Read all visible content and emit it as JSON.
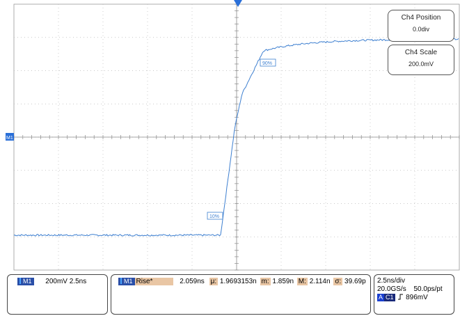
{
  "scope": {
    "channel_marker": "M1",
    "waveform_color": "#3d7fd0",
    "trigger_marker_color": "#2a6fd8",
    "time_per_div_ns": 2.5,
    "volts_per_div_mV": 200,
    "low_level_label": "10%",
    "high_level_label": "90%"
  },
  "ch4_position": {
    "title": "Ch4 Position",
    "value": "0.0div"
  },
  "ch4_scale": {
    "title": "Ch4 Scale",
    "value": "200.0mV"
  },
  "left_panel": {
    "channel": "M1",
    "text": "200mV 2.5ns"
  },
  "measure_panel": {
    "channel": "M1",
    "label": "Rise*",
    "value": "2.059ns",
    "mean_label": "μ:",
    "mean_value": "1.9693153n",
    "min_label": "m:",
    "min_value": "1.859n",
    "max_label": "M:",
    "max_value": "2.114n",
    "sigma_label": "σ:",
    "sigma_value": "39.69p"
  },
  "timebase_panel": {
    "timebase": "2.5ns/div",
    "sample_rate": "20.0GS/s",
    "resolution": "50.0ps/pt",
    "trigger_mode": "A",
    "trigger_source": "C1",
    "trigger_slope_icon": "rising-edge-icon",
    "trigger_level": "896mV"
  }
}
